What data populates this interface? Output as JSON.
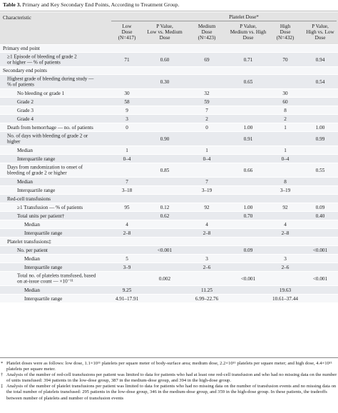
{
  "title": {
    "tag": "Table 3.",
    "text": "Primary and Key Secondary End Points, According to Treatment Group."
  },
  "header": {
    "characteristic": "Characteristic",
    "platelet_dose": "Platelet Dose*",
    "low": [
      "Low",
      "Dose",
      "(N=417)"
    ],
    "p1": [
      "P Value,",
      "Low vs. Medium",
      "Dose"
    ],
    "medium": [
      "Medium",
      "Dose",
      "(N=423)"
    ],
    "p2": [
      "P Value,",
      "Medium vs. High",
      "Dose"
    ],
    "high": [
      "High",
      "Dose",
      "(N=432)"
    ],
    "p3": [
      "P Value,",
      "High vs. Low",
      "Dose"
    ]
  },
  "rows": [
    {
      "label": [
        "Primary end point"
      ],
      "indent": 0,
      "shade": "light",
      "h": 11
    },
    {
      "label": [
        "≥1 Episode of bleeding of grade 2",
        "or higher — % of patients"
      ],
      "indent": 1,
      "shade": "shade",
      "h": 20,
      "low": "71",
      "p1": "0.60",
      "med": "69",
      "p2": "0.71",
      "high": "70",
      "p3": "0.94"
    },
    {
      "label": [
        "Secondary end points"
      ],
      "indent": 0,
      "shade": "light",
      "h": 11
    },
    {
      "label": [
        "Highest grade of bleeding during study —",
        "% of patients"
      ],
      "indent": 1,
      "shade": "shade",
      "h": 20,
      "low": "",
      "p1": "0.30",
      "med": "",
      "p2": "0.65",
      "high": "",
      "p3": "0.54"
    },
    {
      "label": [
        "No bleeding or grade 1"
      ],
      "indent": 2,
      "shade": "light",
      "h": 12,
      "low": "30",
      "p1": "",
      "med": "32",
      "p2": "",
      "high": "30",
      "p3": ""
    },
    {
      "label": [
        "Grade 2"
      ],
      "indent": 2,
      "shade": "shade",
      "h": 12,
      "low": "58",
      "p1": "",
      "med": "59",
      "p2": "",
      "high": "60",
      "p3": ""
    },
    {
      "label": [
        "Grade 3"
      ],
      "indent": 2,
      "shade": "light",
      "h": 12,
      "low": "9",
      "p1": "",
      "med": "7",
      "p2": "",
      "high": "8",
      "p3": ""
    },
    {
      "label": [
        "Grade 4"
      ],
      "indent": 2,
      "shade": "shade",
      "h": 12,
      "low": "3",
      "p1": "",
      "med": "2",
      "p2": "",
      "high": "2",
      "p3": ""
    },
    {
      "label": [
        "Death from hemorrhage — no. of patients"
      ],
      "indent": 1,
      "shade": "light",
      "h": 12,
      "low": "0",
      "p1": "",
      "med": "0",
      "p2": "1.00",
      "high": "1",
      "p3": "1.00"
    },
    {
      "label": [
        "No. of days with bleeding of grade 2 or",
        "higher"
      ],
      "indent": 1,
      "shade": "shade",
      "h": 20,
      "low": "",
      "p1": "0.90",
      "med": "",
      "p2": "0.91",
      "high": "",
      "p3": "0.99"
    },
    {
      "label": [
        "Median"
      ],
      "indent": 2,
      "shade": "light",
      "h": 12,
      "low": "1",
      "p1": "",
      "med": "1",
      "p2": "",
      "high": "1",
      "p3": ""
    },
    {
      "label": [
        "Interquartile range"
      ],
      "indent": 2,
      "shade": "shade",
      "h": 12,
      "low": "0–4",
      "p1": "",
      "med": "0–4",
      "p2": "",
      "high": "0–4",
      "p3": ""
    },
    {
      "label": [
        "Days from randomization to onset of",
        "bleeding of grade 2 or higher"
      ],
      "indent": 1,
      "shade": "light",
      "h": 20,
      "low": "",
      "p1": "0.85",
      "med": "",
      "p2": "0.66",
      "high": "",
      "p3": "0.55"
    },
    {
      "label": [
        "Median"
      ],
      "indent": 2,
      "shade": "shade",
      "h": 12,
      "low": "7",
      "p1": "",
      "med": "7",
      "p2": "",
      "high": "8",
      "p3": ""
    },
    {
      "label": [
        "Interquartile range"
      ],
      "indent": 2,
      "shade": "light",
      "h": 12,
      "low": "3–18",
      "p1": "",
      "med": "3–19",
      "p2": "",
      "high": "3–19",
      "p3": ""
    },
    {
      "label": [
        "Red-cell transfusions"
      ],
      "indent": 1,
      "shade": "shade",
      "h": 12
    },
    {
      "label": [
        "≥1 Transfusion — % of patients"
      ],
      "indent": 2,
      "shade": "light",
      "h": 12,
      "low": "95",
      "p1": "0.12",
      "med": "92",
      "p2": "1.00",
      "high": "92",
      "p3": "0.09"
    },
    {
      "label": [
        "Total units per patient†"
      ],
      "indent": 2,
      "shade": "shade",
      "h": 12,
      "low": "",
      "p1": "0.62",
      "med": "",
      "p2": "0.70",
      "high": "",
      "p3": "0.40"
    },
    {
      "label": [
        "Median"
      ],
      "indent": 3,
      "shade": "light",
      "h": 12,
      "low": "4",
      "p1": "",
      "med": "4",
      "p2": "",
      "high": "4",
      "p3": ""
    },
    {
      "label": [
        "Interquartile range"
      ],
      "indent": 3,
      "shade": "shade",
      "h": 12,
      "low": "2–8",
      "p1": "",
      "med": "2–8",
      "p2": "",
      "high": "2–8",
      "p3": ""
    },
    {
      "label": [
        "Platelet transfusions‡"
      ],
      "indent": 1,
      "shade": "light",
      "h": 12
    },
    {
      "label": [
        "No. per patient"
      ],
      "indent": 2,
      "shade": "shade",
      "h": 12,
      "low": "",
      "p1": "<0.001",
      "med": "",
      "p2": "0.09",
      "high": "",
      "p3": "<0.001"
    },
    {
      "label": [
        "Median"
      ],
      "indent": 3,
      "shade": "light",
      "h": 12,
      "low": "5",
      "p1": "",
      "med": "3",
      "p2": "",
      "high": "3",
      "p3": ""
    },
    {
      "label": [
        "Interquartile range"
      ],
      "indent": 3,
      "shade": "shade",
      "h": 12,
      "low": "3–9",
      "p1": "",
      "med": "2–6",
      "p2": "",
      "high": "2–6",
      "p3": ""
    },
    {
      "label": [
        "Total no. of platelets transfused, based",
        "on at-issue count — ×10⁻¹¹"
      ],
      "indent": 2,
      "shade": "light",
      "h": 20,
      "low": "",
      "p1": "0.002",
      "med": "",
      "p2": "<0.001",
      "high": "",
      "p3": "<0.001"
    },
    {
      "label": [
        "Median"
      ],
      "indent": 3,
      "shade": "shade",
      "h": 12,
      "low": "9.25",
      "p1": "",
      "med": "11.25",
      "p2": "",
      "high": "19.63",
      "p3": ""
    },
    {
      "label": [
        "Interquartile range"
      ],
      "indent": 3,
      "shade": "light",
      "h": 12,
      "low": "4.91–17.91",
      "p1": "",
      "med": "6.99–22.76",
      "p2": "",
      "high": "10.61–37.44",
      "p3": ""
    }
  ],
  "notes": [
    {
      "mark": "*",
      "text": "Platelet doses were as follows: low dose, 1.1×10¹¹ platelets per square meter of body-surface area; medium dose, 2.2×10¹¹ platelets per square meter; and high dose, 4.4×10¹¹ platelets per square meter."
    },
    {
      "mark": "†",
      "text": "Analysis of the number of red-cell transfusions per patient was limited to data for patients who had at least one red-cell transfusion and who had no missing data on the number of units transfused: 394 patients in the low-dose group, 387 in the medium-dose group, and 394 in the high-dose group."
    },
    {
      "mark": "‡",
      "text": "Analysis of the number of platelet transfusions per patient was limited to data for patients who had no missing data on the number of transfusion events and no missing data on the total number of platelets transfused: 295 patients in the low-dose group, 346 in the medium-dose group, and 359 in the high-dose group. In these patients, the tradeoffs between number of platelets and number of transfusion events"
    }
  ]
}
